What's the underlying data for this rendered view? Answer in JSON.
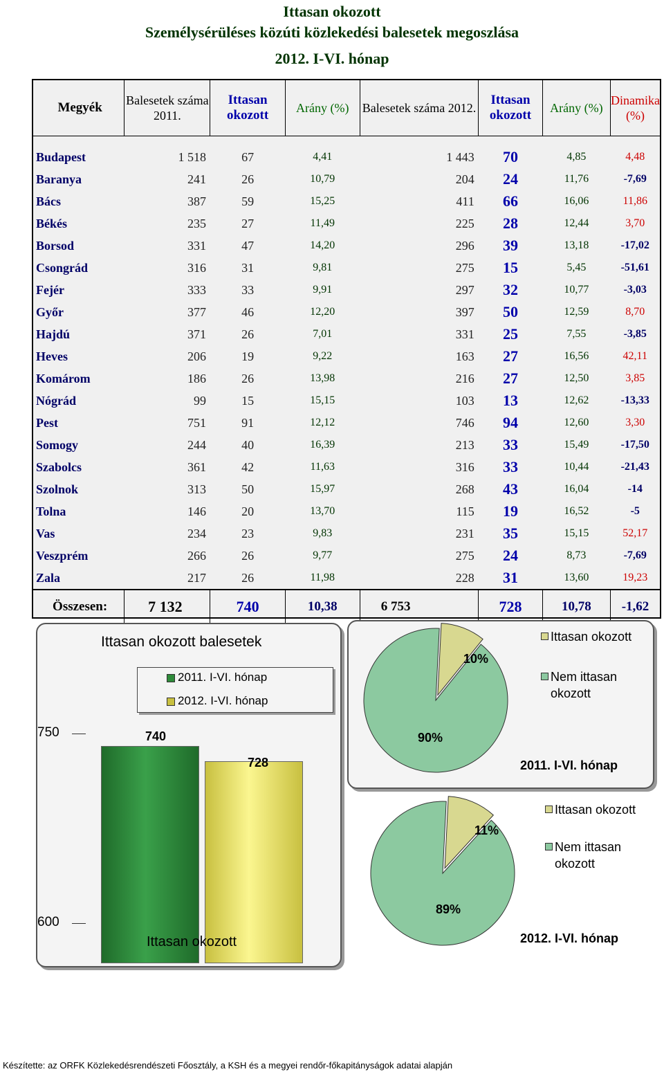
{
  "title": {
    "line1": "Ittasan okozott",
    "line2": "Személysérüléses közúti közlekedési balesetek megoszlása",
    "line3": "2012. I-VI. hónap"
  },
  "table": {
    "headers": {
      "megyek": "Megyék",
      "bal2011": "Balesetek száma 2011.",
      "itt2011": "Ittasan okozott",
      "arany2011": "Arány (%)",
      "bal2012": "Balesetek száma 2012.",
      "itt2012": "Ittasan okozott",
      "arany2012": "Arány (%)",
      "dinamika": "Dinamika (%)"
    },
    "rows": [
      [
        "Budapest",
        "1 518",
        "67",
        "4,41",
        "1 443",
        "70",
        "4,85",
        "4,48"
      ],
      [
        "Baranya",
        "241",
        "26",
        "10,79",
        "204",
        "24",
        "11,76",
        "-7,69"
      ],
      [
        "Bács",
        "387",
        "59",
        "15,25",
        "411",
        "66",
        "16,06",
        "11,86"
      ],
      [
        "Békés",
        "235",
        "27",
        "11,49",
        "225",
        "28",
        "12,44",
        "3,70"
      ],
      [
        "Borsod",
        "331",
        "47",
        "14,20",
        "296",
        "39",
        "13,18",
        "-17,02"
      ],
      [
        "Csongrád",
        "316",
        "31",
        "9,81",
        "275",
        "15",
        "5,45",
        "-51,61"
      ],
      [
        "Fejér",
        "333",
        "33",
        "9,91",
        "297",
        "32",
        "10,77",
        "-3,03"
      ],
      [
        "Győr",
        "377",
        "46",
        "12,20",
        "397",
        "50",
        "12,59",
        "8,70"
      ],
      [
        "Hajdú",
        "371",
        "26",
        "7,01",
        "331",
        "25",
        "7,55",
        "-3,85"
      ],
      [
        "Heves",
        "206",
        "19",
        "9,22",
        "163",
        "27",
        "16,56",
        "42,11"
      ],
      [
        "Komárom",
        "186",
        "26",
        "13,98",
        "216",
        "27",
        "12,50",
        "3,85"
      ],
      [
        "Nógrád",
        "99",
        "15",
        "15,15",
        "103",
        "13",
        "12,62",
        "-13,33"
      ],
      [
        "Pest",
        "751",
        "91",
        "12,12",
        "746",
        "94",
        "12,60",
        "3,30"
      ],
      [
        "Somogy",
        "244",
        "40",
        "16,39",
        "213",
        "33",
        "15,49",
        "-17,50"
      ],
      [
        "Szabolcs",
        "361",
        "42",
        "11,63",
        "316",
        "33",
        "10,44",
        "-21,43"
      ],
      [
        "Szolnok",
        "313",
        "50",
        "15,97",
        "268",
        "43",
        "16,04",
        "-14"
      ],
      [
        "Tolna",
        "146",
        "20",
        "13,70",
        "115",
        "19",
        "16,52",
        "-5"
      ],
      [
        "Vas",
        "234",
        "23",
        "9,83",
        "231",
        "35",
        "15,15",
        "52,17"
      ],
      [
        "Veszprém",
        "266",
        "26",
        "9,77",
        "275",
        "24",
        "8,73",
        "-7,69"
      ],
      [
        "Zala",
        "217",
        "26",
        "11,98",
        "228",
        "31",
        "13,60",
        "19,23"
      ]
    ],
    "total": [
      "Összesen:",
      "7 132",
      "740",
      "10,38",
      "6 753",
      "728",
      "10,78",
      "-1,62"
    ]
  },
  "bar_chart": {
    "title": "Ittasan okozott balesetek",
    "legend": [
      "2011. I-VI. hónap",
      "2012. I-VI. hónap"
    ],
    "xlabel": "Ittasan okozott",
    "ytick_top": "750",
    "ytick_bottom": "600",
    "value_labels": [
      "740",
      "728"
    ]
  },
  "pie_top": {
    "pct_small": "10%",
    "pct_large": "90%",
    "legend": [
      "Ittasan okozott",
      "Nem ittasan okozott"
    ],
    "caption": "2011. I-VI. hónap"
  },
  "pie_bottom": {
    "pct_small": "11%",
    "pct_large": "89%",
    "legend": [
      "Ittasan okozott",
      "Nem ittasan okozott"
    ],
    "caption": "2012. I-VI. hónap"
  },
  "chart_data": [
    {
      "type": "bar",
      "title": "Ittasan okozott balesetek",
      "categories": [
        "Ittasan okozott"
      ],
      "series": [
        {
          "name": "2011. I-VI. hónap",
          "values": [
            740
          ]
        },
        {
          "name": "2012. I-VI. hónap",
          "values": [
            728
          ]
        }
      ],
      "ylim": [
        600,
        750
      ],
      "colors": [
        "#2e8b3a",
        "#f0ee70"
      ]
    },
    {
      "type": "pie",
      "title": "2011. I-VI. hónap",
      "labels": [
        "Ittasan okozott",
        "Nem ittasan okozott"
      ],
      "values": [
        10,
        90
      ],
      "colors": [
        "#d8d890",
        "#8cc9a0"
      ]
    },
    {
      "type": "pie",
      "title": "2012. I-VI. hónap",
      "labels": [
        "Ittasan okozott",
        "Nem ittasan okozott"
      ],
      "values": [
        11,
        89
      ],
      "colors": [
        "#d8d890",
        "#8cc9a0"
      ]
    }
  ],
  "footer": "Készítette: az ORFK  Közlekedésrendészeti Főosztály, a KSH és a megyei rendőr-főkapitányságok adatai alapján"
}
